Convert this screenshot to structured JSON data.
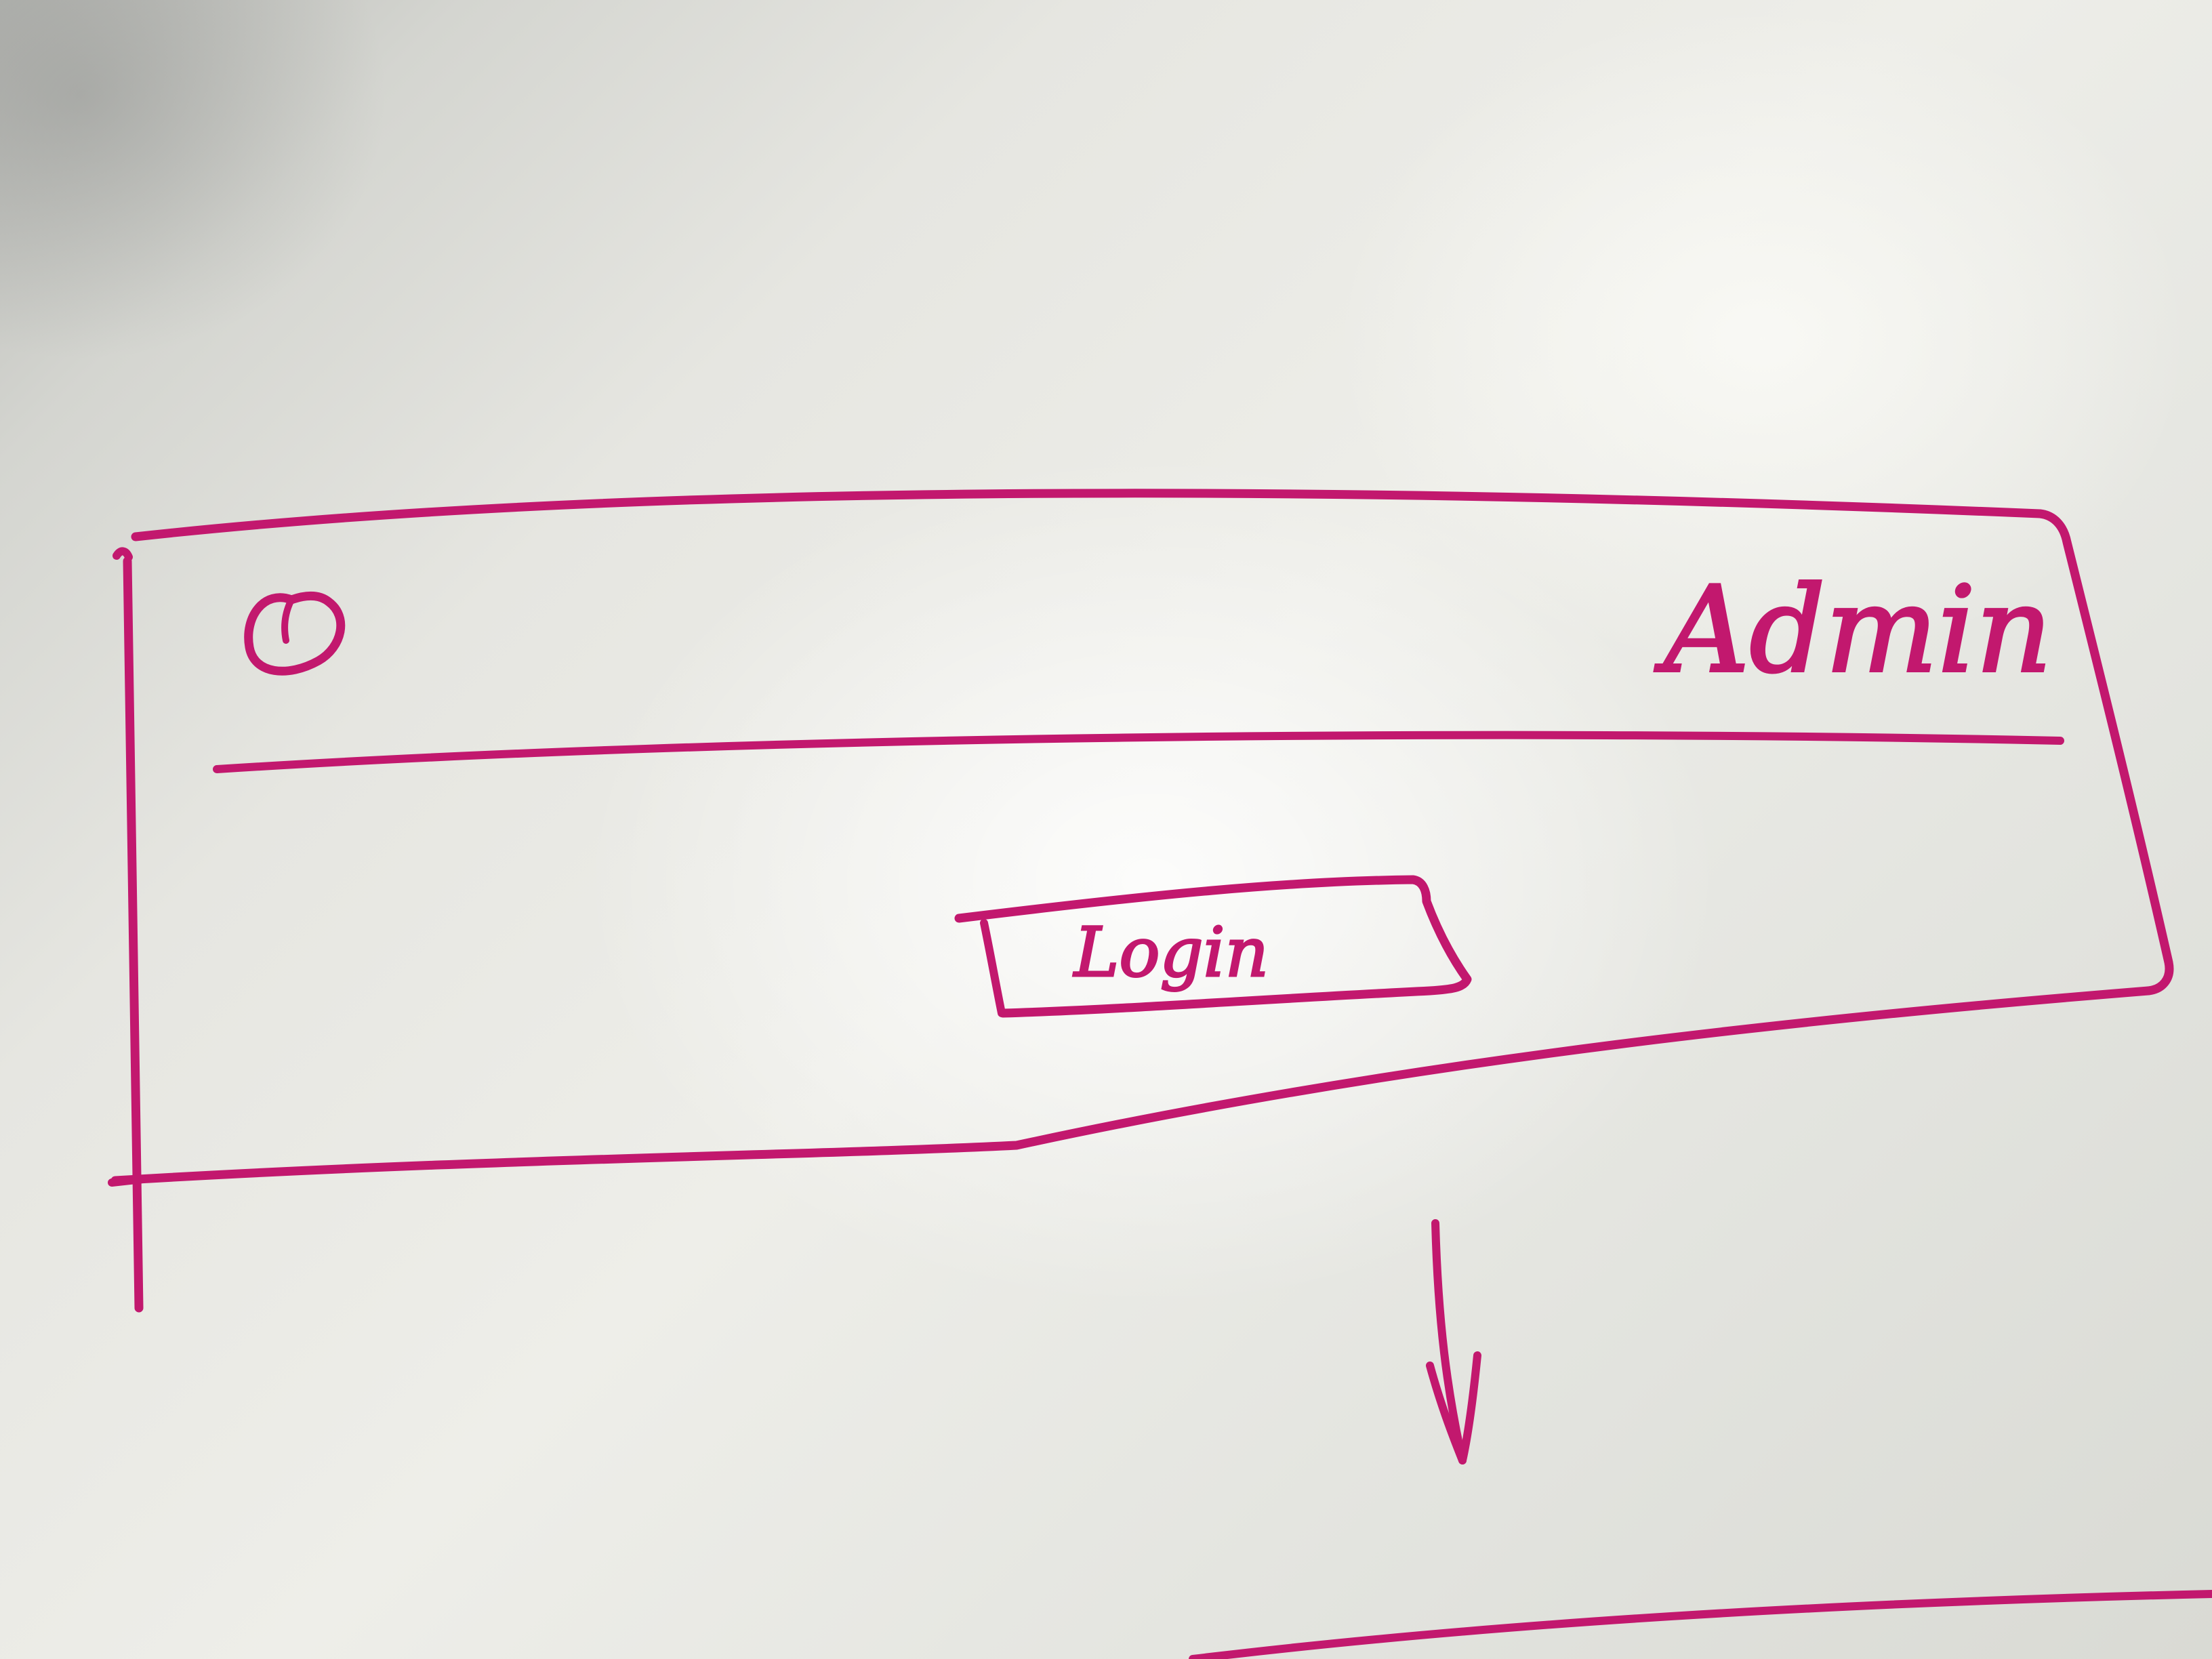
{
  "header": {
    "logo_icon": "circle-logo-icon",
    "user_label": "Admin"
  },
  "main": {
    "login_button_label": "Login"
  },
  "flow": {
    "arrow_icon": "arrow-down-icon"
  },
  "colors": {
    "ink": "#c2186e",
    "ink_light": "#e05aa0"
  }
}
